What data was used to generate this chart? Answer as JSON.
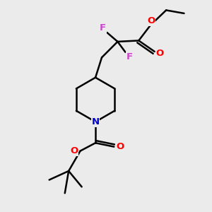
{
  "background_color": "#ebebeb",
  "bond_color": "#000000",
  "bond_width": 1.8,
  "atom_colors": {
    "O": "#ff0000",
    "N": "#0000cc",
    "F": "#cc44cc",
    "C": "#000000"
  },
  "figsize": [
    3.0,
    3.0
  ],
  "dpi": 100,
  "xlim": [
    0,
    10
  ],
  "ylim": [
    0,
    10
  ]
}
